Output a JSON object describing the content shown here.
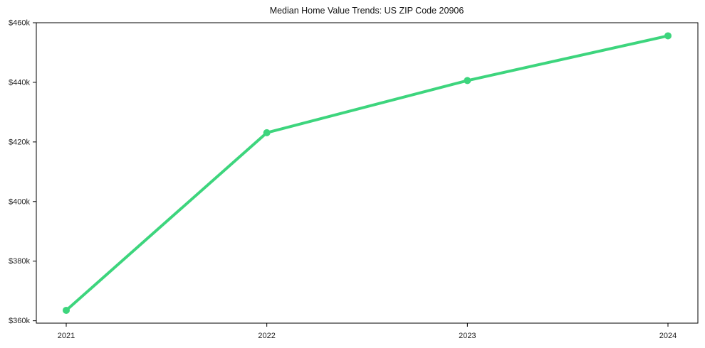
{
  "chart_data": {
    "type": "line",
    "title": "Median Home Value Trends: US ZIP Code 20906",
    "categories": [
      "2021",
      "2022",
      "2023",
      "2024"
    ],
    "series": [
      {
        "name": "Median Home Value",
        "values": [
          363500,
          423100,
          440600,
          455600
        ]
      }
    ],
    "xlabel": "",
    "ylabel": "",
    "ylim": [
      359200,
      460000
    ],
    "y_ticks": [
      {
        "value": 360000,
        "label": "$360k"
      },
      {
        "value": 380000,
        "label": "$380k"
      },
      {
        "value": 400000,
        "label": "$400k"
      },
      {
        "value": 420000,
        "label": "$420k"
      },
      {
        "value": 440000,
        "label": "$440k"
      },
      {
        "value": 460000,
        "label": "$460k"
      }
    ],
    "grid": false,
    "legend_position": "none",
    "line_color": "#3dd57d",
    "marker_shape": "circle",
    "axis_color": "#000000",
    "text_color": "#1a1a1a",
    "background_color": "#ffffff"
  }
}
